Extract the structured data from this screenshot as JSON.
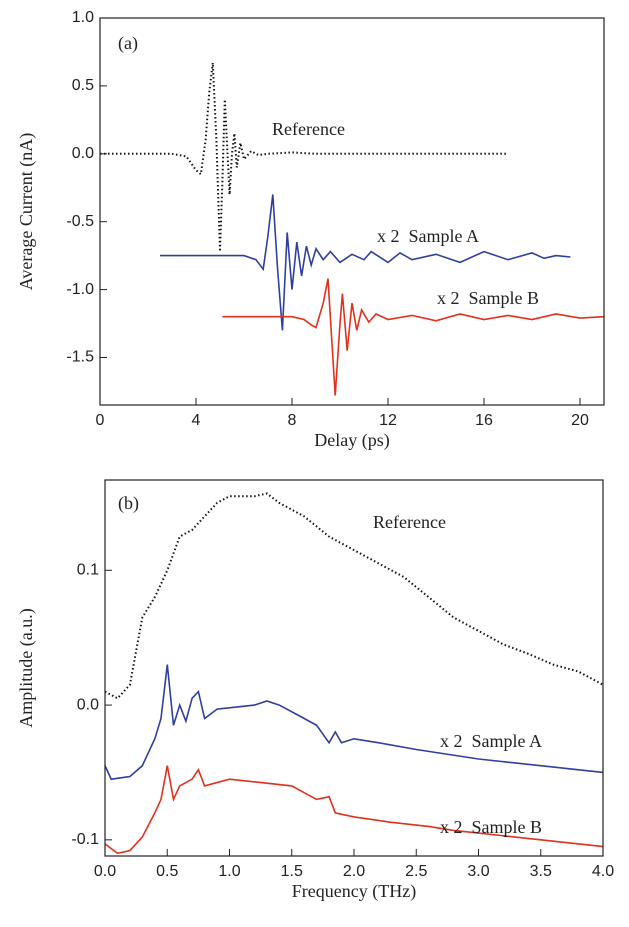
{
  "chart_data": [
    {
      "type": "line",
      "x_label": "Delay (ps)",
      "y_label": "Average Current (nA)",
      "annotations": [
        "(a)",
        "Reference",
        "x 2  Sample A",
        "x 2  Sample B"
      ],
      "xlim": [
        0,
        21
      ],
      "ylim": [
        -1.85,
        1.0
      ],
      "xticks": [
        0,
        4,
        8,
        12,
        16,
        20
      ],
      "yticks": [
        {
          "value": 1.0,
          "label": "1.0"
        },
        {
          "value": 0.5,
          "label": "0.5"
        },
        {
          "value": 0.0,
          "label": "0.0"
        },
        {
          "value": -0.5,
          "label": "-0.5"
        },
        {
          "value": -1.0,
          "label": "-1.0"
        },
        {
          "value": -1.5,
          "label": "-1.5"
        }
      ],
      "series": [
        {
          "name": "Reference",
          "color": "#111111",
          "dotted": true,
          "x": [
            0,
            1,
            2,
            3,
            3.6,
            4.0,
            4.2,
            4.4,
            4.55,
            4.7,
            4.85,
            5.0,
            5.1,
            5.2,
            5.3,
            5.4,
            5.5,
            5.6,
            5.7,
            5.85,
            6.0,
            6.3,
            6.6,
            7,
            8,
            9,
            10,
            12,
            14,
            16,
            17
          ],
          "values": [
            0,
            0,
            0,
            0,
            -0.02,
            -0.12,
            -0.15,
            0.1,
            0.45,
            0.67,
            0.1,
            -0.72,
            -0.2,
            0.4,
            0.05,
            -0.3,
            0.0,
            0.15,
            -0.1,
            0.08,
            -0.04,
            0.02,
            -0.01,
            0.0,
            0.01,
            0.0,
            0.0,
            0.0,
            0.0,
            0.0,
            0.0
          ]
        },
        {
          "name": "Sample A",
          "color": "#2f3f9e",
          "dotted": false,
          "x": [
            2.5,
            4,
            5,
            6,
            6.5,
            6.8,
            7.0,
            7.2,
            7.4,
            7.6,
            7.8,
            8.0,
            8.2,
            8.4,
            8.6,
            8.8,
            9.0,
            9.3,
            9.6,
            10,
            10.5,
            11,
            11.3,
            12,
            12.5,
            13,
            14,
            15,
            16,
            17,
            18,
            18.5,
            19,
            19.6
          ],
          "values": [
            -0.75,
            -0.75,
            -0.75,
            -0.75,
            -0.78,
            -0.85,
            -0.6,
            -0.3,
            -0.85,
            -1.3,
            -0.58,
            -1.0,
            -0.65,
            -0.9,
            -0.68,
            -0.82,
            -0.7,
            -0.78,
            -0.72,
            -0.8,
            -0.74,
            -0.78,
            -0.72,
            -0.8,
            -0.73,
            -0.78,
            -0.74,
            -0.8,
            -0.72,
            -0.78,
            -0.73,
            -0.77,
            -0.75,
            -0.76
          ]
        },
        {
          "name": "Sample B",
          "color": "#e0301e",
          "dotted": false,
          "x": [
            5.1,
            6,
            7,
            8,
            8.5,
            8.8,
            9.0,
            9.3,
            9.5,
            9.8,
            10.0,
            10.1,
            10.3,
            10.5,
            10.7,
            10.9,
            11.2,
            11.5,
            12,
            13,
            14,
            15,
            16,
            17,
            18,
            19,
            20,
            21
          ],
          "values": [
            -1.2,
            -1.2,
            -1.2,
            -1.2,
            -1.22,
            -1.26,
            -1.28,
            -1.1,
            -0.92,
            -1.78,
            -1.25,
            -1.03,
            -1.45,
            -1.1,
            -1.3,
            -1.15,
            -1.24,
            -1.18,
            -1.22,
            -1.19,
            -1.23,
            -1.18,
            -1.22,
            -1.19,
            -1.22,
            -1.18,
            -1.21,
            -1.2
          ]
        }
      ]
    },
    {
      "type": "line",
      "x_label": "Frequency (THz)",
      "y_label": "Amplitude (a.u.)",
      "annotations": [
        "(b)",
        "Reference",
        "x 2  Sample A",
        "x 2  Sample B"
      ],
      "xlim": [
        0,
        4
      ],
      "ylim": [
        -0.112,
        0.167
      ],
      "xticks": [
        {
          "value": 0,
          "label": "0.0"
        },
        0.5,
        {
          "value": 1,
          "label": "1.0"
        },
        1.5,
        {
          "value": 2,
          "label": "2.0"
        },
        2.5,
        {
          "value": 3,
          "label": "3.0"
        },
        3.5,
        {
          "value": 4,
          "label": "4.0"
        }
      ],
      "yticks": [
        0.1,
        {
          "value": 0,
          "label": "0.0"
        },
        -0.1
      ],
      "series": [
        {
          "name": "Reference",
          "color": "#111111",
          "dotted": true,
          "x": [
            0,
            0.1,
            0.2,
            0.3,
            0.4,
            0.5,
            0.6,
            0.7,
            0.8,
            0.9,
            1.0,
            1.2,
            1.3,
            1.4,
            1.6,
            1.8,
            2.0,
            2.2,
            2.4,
            2.6,
            2.8,
            3.0,
            3.2,
            3.4,
            3.6,
            3.8,
            4.0
          ],
          "values": [
            0.01,
            0.005,
            0.015,
            0.065,
            0.08,
            0.1,
            0.125,
            0.13,
            0.14,
            0.15,
            0.155,
            0.155,
            0.157,
            0.15,
            0.14,
            0.125,
            0.115,
            0.105,
            0.095,
            0.08,
            0.065,
            0.055,
            0.045,
            0.038,
            0.03,
            0.025,
            0.015
          ]
        },
        {
          "name": "Sample A",
          "color": "#2f3f9e",
          "dotted": false,
          "x": [
            0,
            0.05,
            0.2,
            0.3,
            0.4,
            0.45,
            0.5,
            0.55,
            0.6,
            0.65,
            0.7,
            0.75,
            0.8,
            0.9,
            1.0,
            1.2,
            1.3,
            1.4,
            1.6,
            1.7,
            1.8,
            1.85,
            1.9,
            2.0,
            2.2,
            2.5,
            3.0,
            3.5,
            4.0
          ],
          "values": [
            -0.045,
            -0.055,
            -0.053,
            -0.045,
            -0.025,
            -0.01,
            0.03,
            -0.015,
            0.0,
            -0.012,
            0.005,
            0.01,
            -0.01,
            -0.003,
            -0.002,
            0.0,
            0.003,
            0.0,
            -0.01,
            -0.015,
            -0.028,
            -0.02,
            -0.028,
            -0.025,
            -0.028,
            -0.033,
            -0.04,
            -0.045,
            -0.05
          ]
        },
        {
          "name": "Sample B",
          "color": "#e0301e",
          "dotted": false,
          "x": [
            0,
            0.1,
            0.2,
            0.3,
            0.4,
            0.45,
            0.5,
            0.55,
            0.6,
            0.7,
            0.75,
            0.8,
            1.0,
            1.3,
            1.5,
            1.6,
            1.7,
            1.8,
            1.85,
            2.0,
            2.3,
            2.6,
            2.8,
            3.0,
            3.5,
            4.0
          ],
          "values": [
            -0.103,
            -0.11,
            -0.108,
            -0.098,
            -0.08,
            -0.07,
            -0.045,
            -0.07,
            -0.06,
            -0.055,
            -0.048,
            -0.06,
            -0.055,
            -0.058,
            -0.06,
            -0.065,
            -0.07,
            -0.068,
            -0.08,
            -0.083,
            -0.087,
            -0.09,
            -0.093,
            -0.095,
            -0.1,
            -0.105
          ]
        }
      ]
    }
  ]
}
